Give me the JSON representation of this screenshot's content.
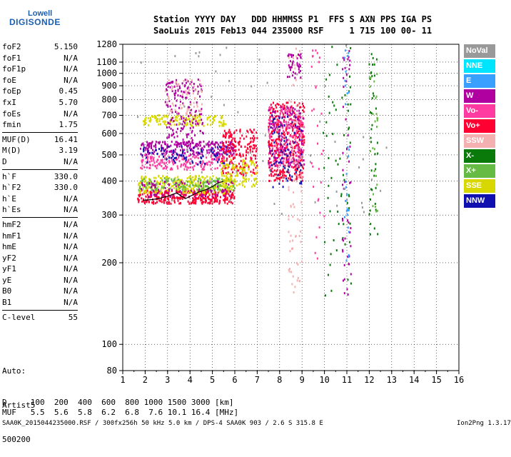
{
  "logo": {
    "line1": "Lowell",
    "line2": "DIGISONDE"
  },
  "header": {
    "line1": "Station YYYY DAY   DDD HHMMSS P1  FFS S AXN PPS IGA PS",
    "line2": "SaoLuis 2015 Feb13 044 235000 RSF     1 715 100 00- 11"
  },
  "params": {
    "group1": [
      {
        "name": "foF2",
        "value": "5.150"
      },
      {
        "name": "foF1",
        "value": "N/A"
      },
      {
        "name": "foF1p",
        "value": "N/A"
      },
      {
        "name": "foE",
        "value": "N/A"
      },
      {
        "name": "foEp",
        "value": "0.45"
      },
      {
        "name": "fxI",
        "value": "5.70"
      },
      {
        "name": "foEs",
        "value": "N/A"
      },
      {
        "name": "fmin",
        "value": "1.75"
      }
    ],
    "group2": [
      {
        "name": "MUF(D)",
        "value": "16.41"
      },
      {
        "name": "M(D)",
        "value": "3.19"
      },
      {
        "name": "D",
        "value": "N/A"
      }
    ],
    "group3": [
      {
        "name": "h`F",
        "value": "330.0"
      },
      {
        "name": "h`F2",
        "value": "330.0"
      },
      {
        "name": "h`E",
        "value": "N/A"
      },
      {
        "name": "h`Es",
        "value": "N/A"
      }
    ],
    "group4": [
      {
        "name": "hmF2",
        "value": "N/A"
      },
      {
        "name": "hmF1",
        "value": "N/A"
      },
      {
        "name": "hmE",
        "value": "N/A"
      },
      {
        "name": "yF2",
        "value": "N/A"
      },
      {
        "name": "yF1",
        "value": "N/A"
      },
      {
        "name": "yE",
        "value": "N/A"
      },
      {
        "name": "B0",
        "value": "N/A"
      },
      {
        "name": "B1",
        "value": "N/A"
      }
    ],
    "group5": [
      {
        "name": "C-level",
        "value": "55"
      }
    ]
  },
  "auto": {
    "line1": "Auto:",
    "line2": "Artist5",
    "line3": "500200"
  },
  "footer": {
    "d_row": "D     100  200  400  600  800 1000 1500 3000 [km]",
    "muf_row": "MUF   5.5  5.6  5.8  6.2  6.8  7.6 10.1 16.4 [MHz]",
    "info": "SAA0K_2015044235000.RSF / 300fx256h 50 kHz 5.0 km / DPS-4 SAA0K 903 / 2.6 S 315.8 E",
    "version": "Ion2Png 1.3.17"
  },
  "legend": [
    {
      "label": "NoVal",
      "color": "#999999",
      "text_color": "#ffffff"
    },
    {
      "label": "NNE",
      "color": "#00e5ff",
      "text_color": "#ffffff"
    },
    {
      "label": "E",
      "color": "#3aa0ff",
      "text_color": "#ffffff"
    },
    {
      "label": "W",
      "color": "#b000a0",
      "text_color": "#ffffff"
    },
    {
      "label": "Vo-",
      "color": "#ff3aa0",
      "text_color": "#ffffff"
    },
    {
      "label": "Vo+",
      "color": "#ff0033",
      "text_color": "#ffffff"
    },
    {
      "label": "SSW",
      "color": "#f4b0b0",
      "text_color": "#ffffff"
    },
    {
      "label": "X-",
      "color": "#0a7a0a",
      "text_color": "#ffffff"
    },
    {
      "label": "X+",
      "color": "#66bb44",
      "text_color": "#ffffff"
    },
    {
      "label": "SSE",
      "color": "#d8d800",
      "text_color": "#ffffff"
    },
    {
      "label": "NNW",
      "color": "#1010b0",
      "text_color": "#ffffff"
    }
  ],
  "chart_data": {
    "type": "scatter",
    "title": "",
    "xlabel": "",
    "ylabel": "",
    "xlim": [
      1,
      16
    ],
    "ylim": [
      80,
      1280
    ],
    "y_scale": "log",
    "x_ticks": [
      "1",
      "2",
      "3",
      "4",
      "5",
      "6",
      "7",
      "8",
      "9",
      "10",
      "11",
      "12",
      "13",
      "14",
      "15",
      "16"
    ],
    "y_ticks": [
      {
        "v": 80,
        "label": "80"
      },
      {
        "v": 100,
        "label": "100"
      },
      {
        "v": 200,
        "label": "200"
      },
      {
        "v": 300,
        "label": "300"
      },
      {
        "v": 400,
        "label": "400"
      },
      {
        "v": 500,
        "label": "500"
      },
      {
        "v": 600,
        "label": "600"
      },
      {
        "v": 700,
        "label": "700"
      },
      {
        "v": 800,
        "label": "800"
      },
      {
        "v": 900,
        "label": "900"
      },
      {
        "v": 1000,
        "label": "1000"
      },
      {
        "v": 1100,
        "label": "1100"
      },
      {
        "v": 1280,
        "label": "1280"
      }
    ],
    "grid": true,
    "legend_position": "right",
    "echo_regions": [
      {
        "f0": 1.65,
        "f1": 6.0,
        "h0": 330,
        "h1": 370,
        "color": "#ff0033",
        "n": 320
      },
      {
        "f0": 1.7,
        "f1": 6.0,
        "h0": 360,
        "h1": 420,
        "color": "#d8d800",
        "n": 280
      },
      {
        "f0": 1.7,
        "f1": 6.0,
        "h0": 370,
        "h1": 410,
        "color": "#66bb44",
        "n": 150
      },
      {
        "f0": 1.7,
        "f1": 6.0,
        "h0": 350,
        "h1": 400,
        "color": "#b000a0",
        "n": 90
      },
      {
        "f0": 1.8,
        "f1": 5.6,
        "h0": 440,
        "h1": 500,
        "color": "#ff3aa0",
        "n": 180
      },
      {
        "f0": 1.8,
        "f1": 6.0,
        "h0": 500,
        "h1": 560,
        "color": "#b000a0",
        "n": 240
      },
      {
        "f0": 1.8,
        "f1": 5.8,
        "h0": 460,
        "h1": 540,
        "color": "#1010b0",
        "n": 80
      },
      {
        "f0": 1.9,
        "f1": 5.6,
        "h0": 640,
        "h1": 700,
        "color": "#d8d800",
        "n": 140
      },
      {
        "f0": 2.9,
        "f1": 4.6,
        "h0": 540,
        "h1": 950,
        "color": "#b000a0",
        "n": 170
      },
      {
        "f0": 2.9,
        "f1": 4.6,
        "h0": 700,
        "h1": 950,
        "color": "#f4b0b0",
        "n": 60
      },
      {
        "f0": 5.4,
        "f1": 7.0,
        "h0": 420,
        "h1": 620,
        "color": "#ff0033",
        "n": 200
      },
      {
        "f0": 5.4,
        "f1": 7.0,
        "h0": 380,
        "h1": 480,
        "color": "#d8d800",
        "n": 120
      },
      {
        "f0": 7.5,
        "f1": 9.1,
        "h0": 400,
        "h1": 780,
        "color": "#ff0033",
        "n": 380
      },
      {
        "f0": 7.5,
        "f1": 9.1,
        "h0": 450,
        "h1": 750,
        "color": "#ff3aa0",
        "n": 160
      },
      {
        "f0": 7.5,
        "f1": 9.1,
        "h0": 450,
        "h1": 750,
        "color": "#b000a0",
        "n": 120
      },
      {
        "f0": 7.6,
        "f1": 9.0,
        "h0": 380,
        "h1": 700,
        "color": "#1010b0",
        "n": 70
      },
      {
        "f0": 8.4,
        "f1": 9.0,
        "h0": 150,
        "h1": 1250,
        "color": "#f4b0b0",
        "n": 90
      },
      {
        "f0": 8.3,
        "f1": 9.0,
        "h0": 950,
        "h1": 1180,
        "color": "#b000a0",
        "n": 40
      },
      {
        "f0": 9.9,
        "f1": 11.2,
        "h0": 150,
        "h1": 1280,
        "color": "#0a7a0a",
        "n": 60
      },
      {
        "f0": 10.8,
        "f1": 11.2,
        "h0": 150,
        "h1": 1280,
        "color": "#b000a0",
        "n": 50
      },
      {
        "f0": 10.9,
        "f1": 11.1,
        "h0": 200,
        "h1": 1280,
        "color": "#3aa0ff",
        "n": 30
      },
      {
        "f0": 12.0,
        "f1": 12.4,
        "h0": 250,
        "h1": 1200,
        "color": "#0a7a0a",
        "n": 40
      },
      {
        "f0": 12.0,
        "f1": 12.4,
        "h0": 300,
        "h1": 1000,
        "color": "#66bb44",
        "n": 25
      },
      {
        "f0": 9.4,
        "f1": 10.0,
        "h0": 200,
        "h1": 1250,
        "color": "#ff3aa0",
        "n": 30
      },
      {
        "f0": 1.5,
        "f1": 13.0,
        "h0": 300,
        "h1": 1280,
        "color": "#999999",
        "n": 60
      }
    ],
    "trace": {
      "name": "",
      "color": "#000000",
      "x": [
        1.9,
        2.3,
        2.6,
        3.0,
        3.4,
        3.8,
        4.1,
        4.4,
        4.7,
        5.0,
        5.2,
        5.5
      ],
      "y": [
        340,
        342,
        345,
        352,
        362,
        345,
        355,
        365,
        372,
        382,
        392,
        400
      ]
    }
  }
}
